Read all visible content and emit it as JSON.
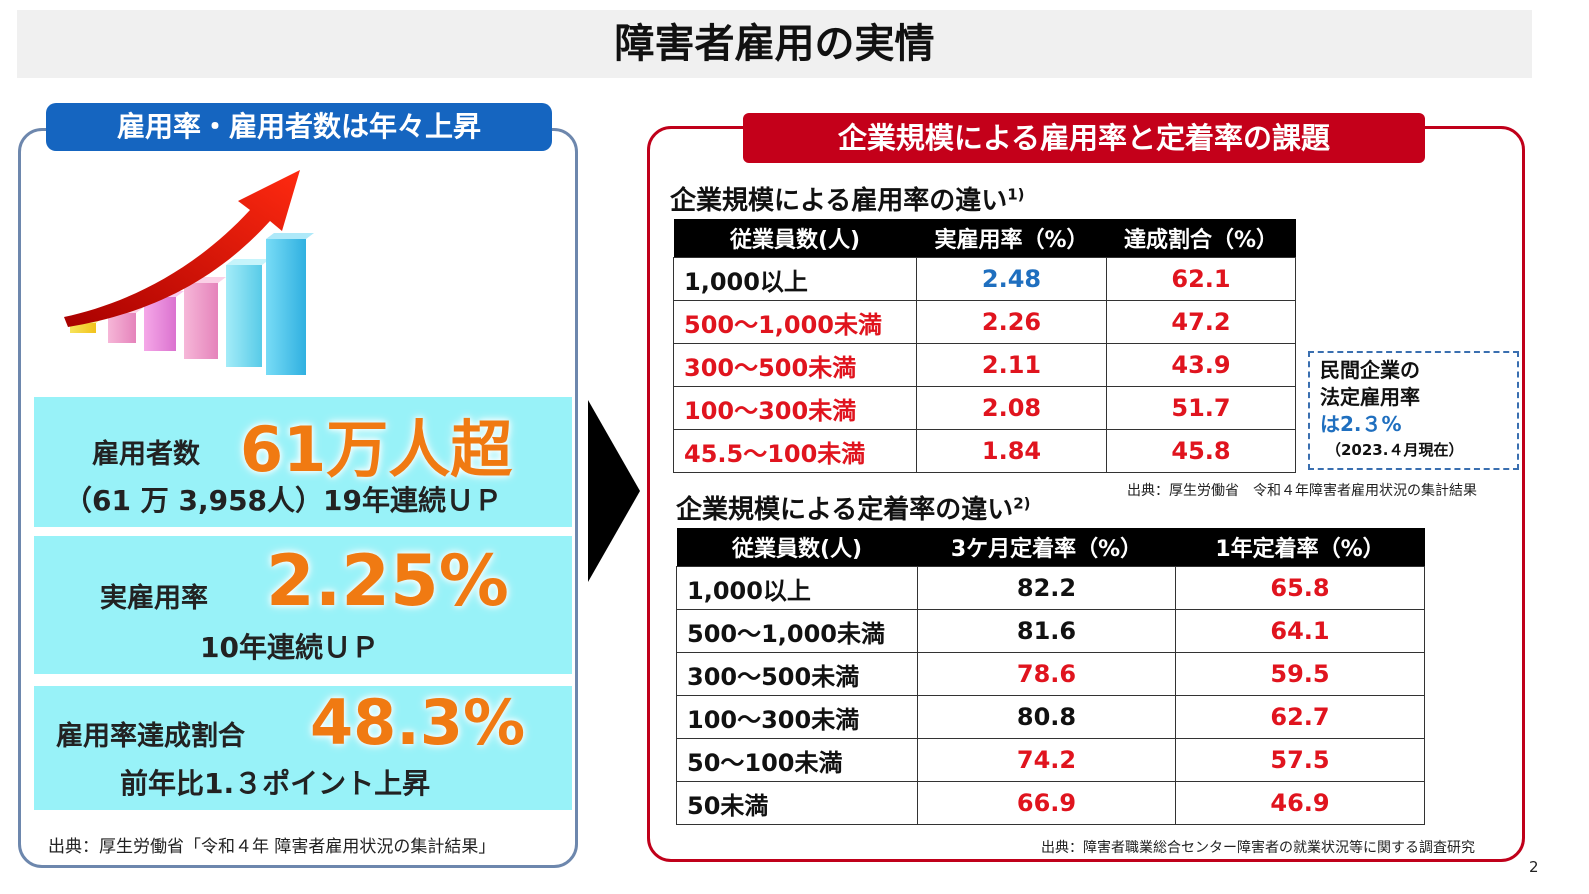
{
  "title": "障害者雇用の実情",
  "left": {
    "header": "雇用率・雇用者数は年々上昇",
    "stats": [
      {
        "label": "雇用者数",
        "value": "61万人超",
        "sub": "（61 万 3,958人）19年連続ＵＰ"
      },
      {
        "label": "実雇用率",
        "value": "2.25%",
        "sub": "10年連続ＵＰ"
      },
      {
        "label": "雇用率達成割合",
        "value": "48.3%",
        "sub": "前年比1.３ポイント上昇"
      }
    ],
    "source": "出典：厚生労働省「令和４年 障害者雇用状況の集計結果」"
  },
  "right": {
    "header": "企業規模による雇用率と定着率の課題",
    "table1": {
      "title": "企業規模による雇用率の違い",
      "title_sup": "1)",
      "headers": [
        "従業員数(人)",
        "実雇用率（%）",
        "達成割合（%）"
      ],
      "rows": [
        [
          "1,000以上",
          "2.48",
          "62.1"
        ],
        [
          "500～1,000未満",
          "2.26",
          "47.2"
        ],
        [
          "300～500未満",
          "2.11",
          "43.9"
        ],
        [
          "100～300未満",
          "2.08",
          "51.7"
        ],
        [
          "45.5～100未満",
          "1.84",
          "45.8"
        ]
      ],
      "source": "出典：厚生労働省　令和４年障害者雇用状況の集計結果"
    },
    "note": {
      "line1": "民間企業の",
      "line2": "法定雇用率",
      "line3": "は2.３%",
      "line4": "（2023.４月現在）"
    },
    "table2": {
      "title": "企業規模による定着率の違い",
      "title_sup": "2)",
      "headers": [
        "従業員数(人)",
        "3ケ月定着率（%）",
        "1年定着率（%）"
      ],
      "rows": [
        [
          "1,000以上",
          "82.2",
          "65.8"
        ],
        [
          "500～1,000未満",
          "81.6",
          "64.1"
        ],
        [
          "300～500未満",
          "78.6",
          "59.5"
        ],
        [
          "100～300未満",
          "80.8",
          "62.7"
        ],
        [
          "50～100未満",
          "74.2",
          "57.5"
        ],
        [
          "50未満",
          "66.9",
          "46.9"
        ]
      ],
      "source": "出典：障害者職業総合センター障害者の就業状況等に関する調査研究"
    },
    "colors": {
      "red": "#e0141e",
      "blue": "#1f6fbf",
      "black": "#111111"
    }
  },
  "page_number": "2"
}
